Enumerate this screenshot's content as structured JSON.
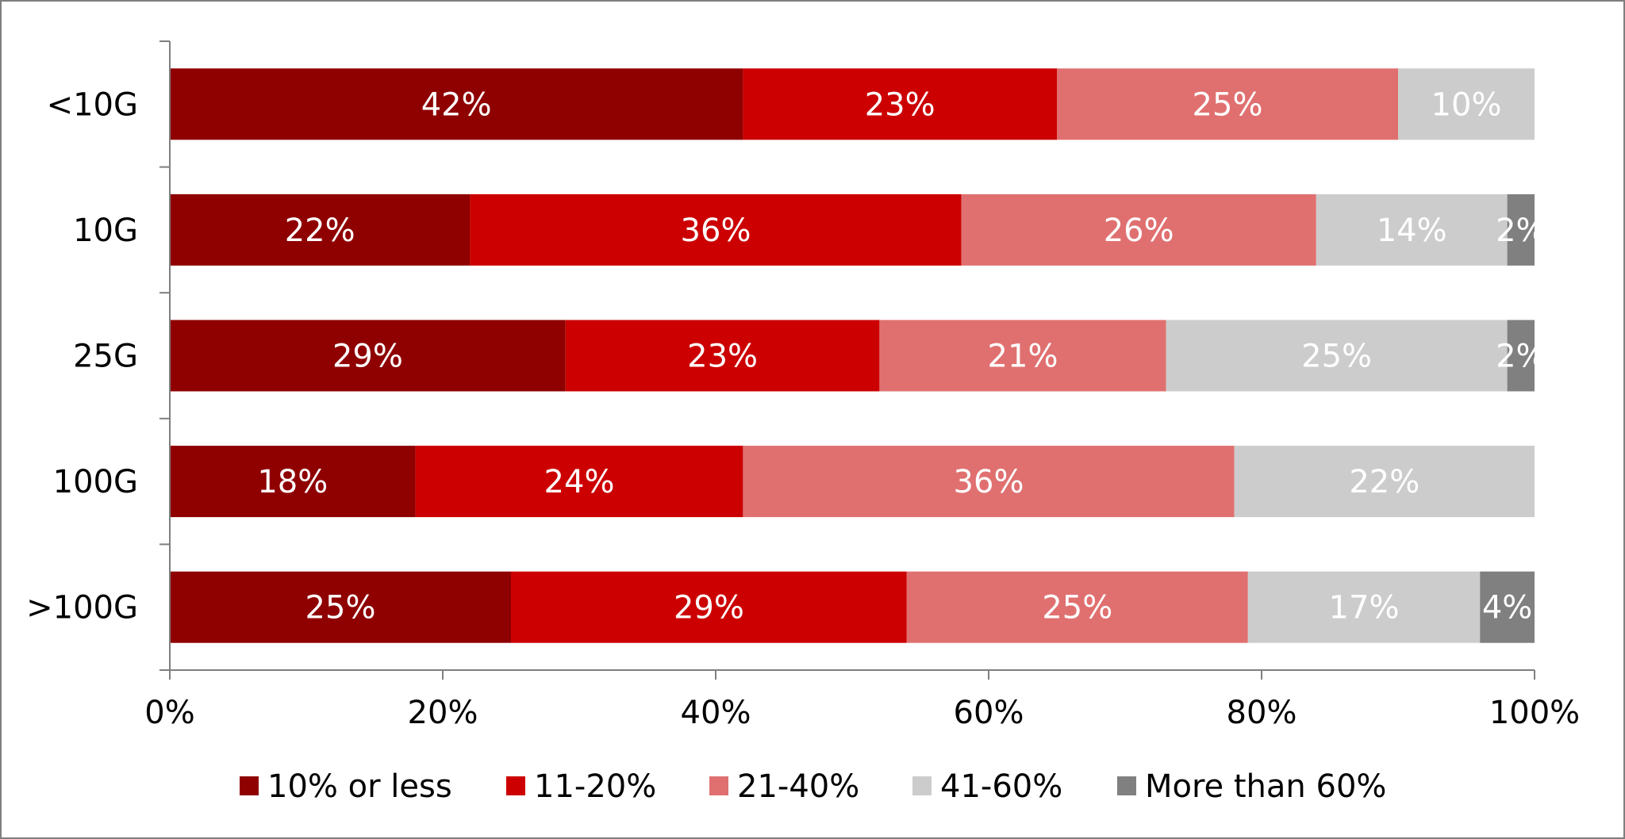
{
  "chart_data": {
    "type": "bar",
    "orientation": "horizontal",
    "stacked": "percent",
    "title": "",
    "xlabel": "",
    "ylabel": "",
    "xlim": [
      0,
      100
    ],
    "x_ticks": [
      "0%",
      "20%",
      "40%",
      "60%",
      "80%",
      "100%"
    ],
    "categories": [
      "<10G",
      "10G",
      "25G",
      "100G",
      ">100G"
    ],
    "series": [
      {
        "name": "10% or less",
        "color": "#8f0000",
        "values": [
          42,
          22,
          29,
          18,
          25
        ]
      },
      {
        "name": "11-20%",
        "color": "#cc0000",
        "values": [
          23,
          36,
          23,
          24,
          29
        ]
      },
      {
        "name": "21-40%",
        "color": "#e07070",
        "values": [
          25,
          26,
          21,
          36,
          25
        ]
      },
      {
        "name": "41-60%",
        "color": "#cccccc",
        "values": [
          10,
          14,
          25,
          22,
          17
        ]
      },
      {
        "name": "More than 60%",
        "color": "#808080",
        "values": [
          0,
          2,
          2,
          0,
          4
        ]
      }
    ],
    "data_labels": true,
    "legend_position": "bottom",
    "grid": false
  }
}
